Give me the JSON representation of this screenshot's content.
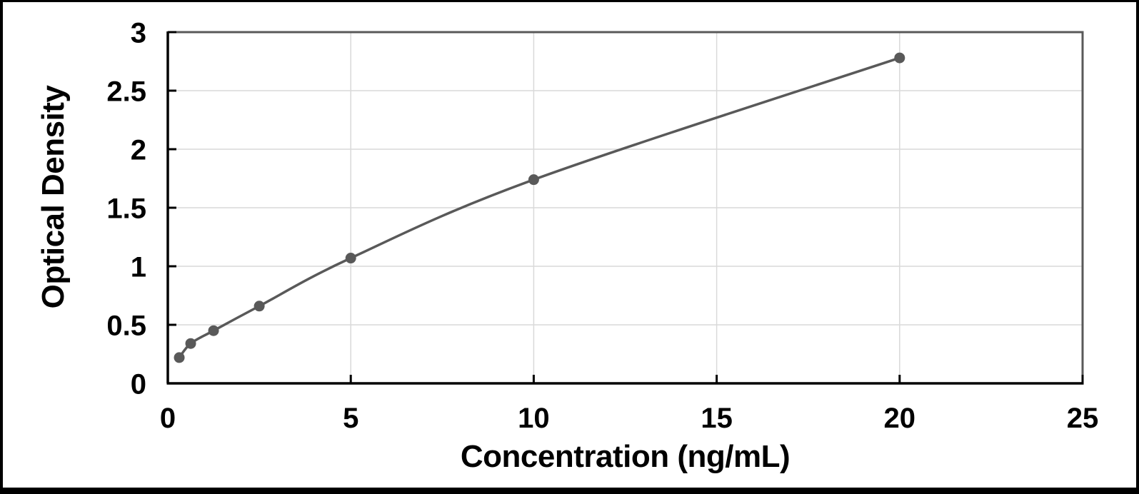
{
  "chart_data": {
    "type": "scatter",
    "title": "",
    "xlabel": "Concentration (ng/mL)",
    "ylabel": "Optical Density",
    "xlim": [
      0,
      25
    ],
    "ylim": [
      0,
      3
    ],
    "xticks": [
      0,
      5,
      10,
      15,
      20,
      25
    ],
    "yticks": [
      0,
      0.5,
      1,
      1.5,
      2,
      2.5,
      3
    ],
    "grid": true,
    "legend_position": "none",
    "series": [
      {
        "name": "standard-curve",
        "style": "smooth-line-with-markers",
        "x": [
          0.313,
          0.625,
          1.25,
          2.5,
          5,
          10,
          20
        ],
        "y": [
          0.22,
          0.34,
          0.45,
          0.66,
          1.07,
          1.74,
          2.78
        ]
      }
    ],
    "colors": {
      "line": "#595959",
      "marker": "#595959",
      "grid": "#d9d9d9",
      "plot_border": "#595959",
      "axis": "#000000",
      "background": "#ffffff",
      "frame": "#000000"
    }
  }
}
